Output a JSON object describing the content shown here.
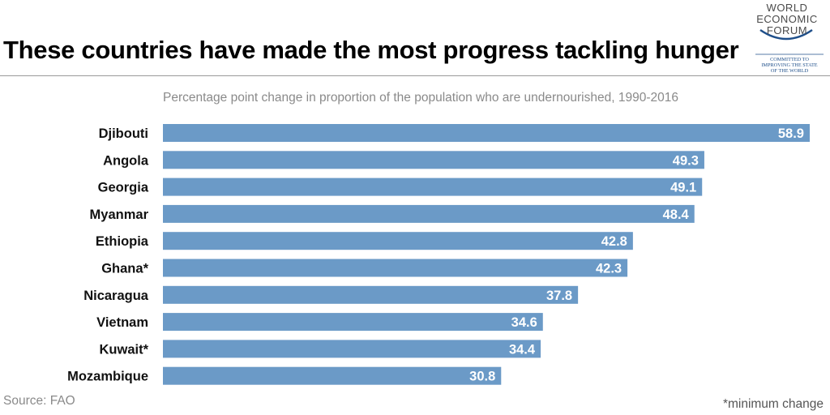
{
  "header": {
    "title": "These countries have made the most progress tackling hunger",
    "subtitle": "Percentage point change in proportion of the population who are undernourished, 1990-2016"
  },
  "logo": {
    "name_lines": [
      "WORLD",
      "ECONOMIC",
      "FORUM"
    ],
    "tagline_lines": [
      "COMMITTED TO",
      "IMPROVING THE STATE",
      "OF THE WORLD"
    ]
  },
  "footer": {
    "source": "Source: FAO",
    "footnote": "*minimum change"
  },
  "colors": {
    "bar": "#6b9ac7",
    "label": "#ffffff",
    "accent": "#1f4f8a"
  },
  "chart_data": {
    "type": "bar",
    "orientation": "horizontal",
    "title": "These countries have made the most progress tackling hunger",
    "subtitle": "Percentage point change in proportion of the population who are undernourished, 1990-2016",
    "categories": [
      "Djibouti",
      "Angola",
      "Georgia",
      "Myanmar",
      "Ethiopia",
      "Ghana*",
      "Nicaragua",
      "Vietnam",
      "Kuwait*",
      "Mozambique"
    ],
    "values": [
      58.9,
      49.3,
      49.1,
      48.4,
      42.8,
      42.3,
      37.8,
      34.6,
      34.4,
      30.8
    ],
    "data_labels": [
      "58.9",
      "49.3",
      "49.1",
      "48.4",
      "42.8",
      "42.3",
      "37.8",
      "34.6",
      "34.4",
      "30.8"
    ],
    "xlim": [
      0,
      58.9
    ],
    "grid": false,
    "legend": "none"
  }
}
